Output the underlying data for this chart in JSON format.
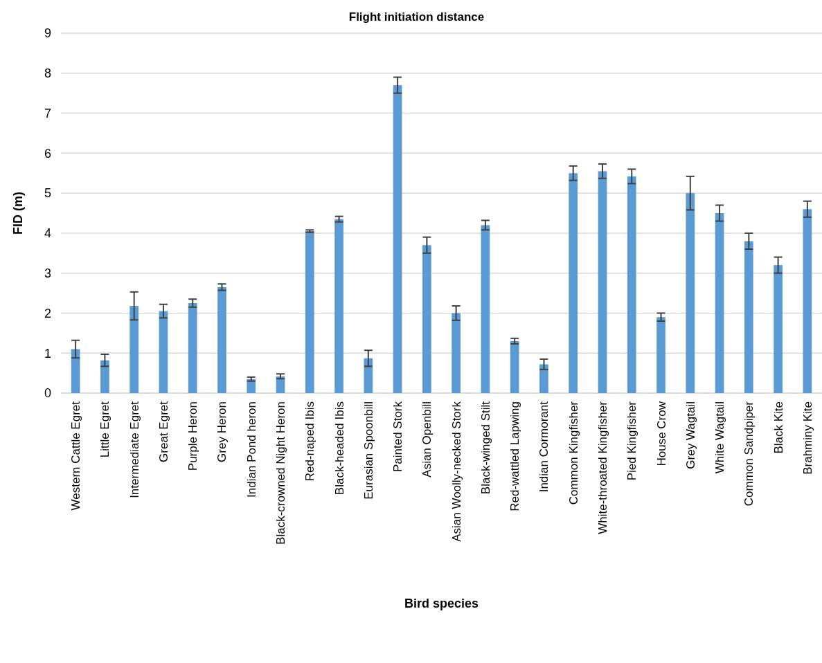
{
  "chart_data": {
    "type": "bar",
    "title": "Flight initiation distance",
    "xlabel": "Bird species",
    "ylabel": "FID (m)",
    "categories": [
      "Western Cattle Egret",
      "Little Egret",
      "Intermediate Egret",
      "Great Egret",
      "Purple Heron",
      "Grey Heron",
      "Indian Pond heron",
      "Black-crowned Night Heron",
      "Red-naped Ibis",
      "Black-headed Ibis",
      "Eurasian Spoonbill",
      "Painted Stork",
      "Asian Openbill",
      "Asian Woolly-necked Stork",
      "Black-winged Stilt",
      "Red-wattled Lapwing",
      "Indian Cormorant",
      "Common Kingfisher",
      "White-throated Kingfisher",
      "Pied Kingfisher",
      "House Crow",
      "Grey Wagtail",
      "White Wagtail",
      "Common Sandpiper",
      "Black Kite",
      "Brahminy Kite"
    ],
    "values": [
      1.1,
      0.82,
      2.18,
      2.05,
      2.25,
      2.65,
      0.35,
      0.42,
      4.05,
      4.35,
      0.87,
      7.7,
      3.7,
      2.0,
      4.2,
      1.3,
      0.72,
      5.5,
      5.55,
      5.42,
      1.9,
      5.0,
      4.5,
      3.8,
      3.2,
      4.6
    ],
    "errors": [
      0.22,
      0.15,
      0.35,
      0.17,
      0.1,
      0.08,
      0.05,
      0.06,
      0.03,
      0.07,
      0.2,
      0.2,
      0.2,
      0.18,
      0.12,
      0.07,
      0.13,
      0.18,
      0.18,
      0.18,
      0.1,
      0.42,
      0.2,
      0.2,
      0.2,
      0.2
    ],
    "color": "#5b9bd5",
    "ylim": [
      0,
      9
    ],
    "yticks": [
      0,
      1,
      2,
      3,
      4,
      5,
      6,
      7,
      8,
      9
    ],
    "grid": "y"
  }
}
